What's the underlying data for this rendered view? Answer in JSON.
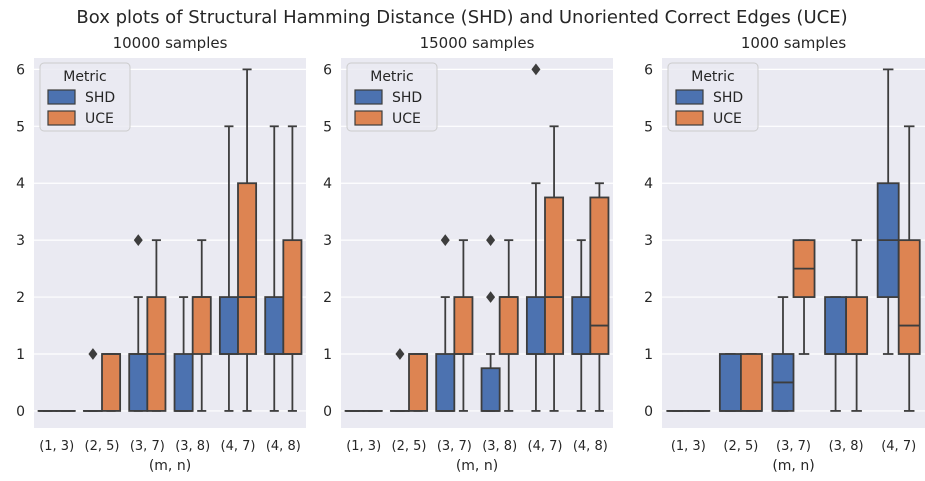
{
  "figure_title": "Box plots of Structural Hamming Distance (SHD) and Unoriented Correct Edges (UCE)",
  "colors": {
    "background": "#ffffff",
    "panel": "#eaeaf2",
    "grid": "#ffffff",
    "SHD": "#4c72b0",
    "UCE": "#dd8452",
    "line": "#3d3d3d",
    "text": "#262626"
  },
  "chart_data": [
    {
      "type": "box",
      "title": "10000 samples",
      "xlabel": "(m, n)",
      "ylabel": "",
      "ylim": [
        -0.3,
        6.2
      ],
      "yticks": [
        "0",
        "1",
        "2",
        "3",
        "4",
        "5",
        "6"
      ],
      "categories": [
        "(1, 3)",
        "(2, 5)",
        "(3, 7)",
        "(3, 8)",
        "(4, 7)",
        "(4, 8)"
      ],
      "legend": {
        "title": "Metric",
        "entries": [
          "SHD",
          "UCE"
        ],
        "position": "top-left"
      },
      "series": [
        {
          "name": "SHD",
          "boxes": [
            {
              "q1": 0,
              "median": 0,
              "q3": 0,
              "whislo": 0,
              "whishi": 0,
              "fliers": []
            },
            {
              "q1": 0,
              "median": 0,
              "q3": 0,
              "whislo": 0,
              "whishi": 0,
              "fliers": [
                1
              ]
            },
            {
              "q1": 0,
              "median": 1,
              "q3": 1,
              "whislo": 0,
              "whishi": 2,
              "fliers": [
                3
              ]
            },
            {
              "q1": 0,
              "median": 0,
              "q3": 1,
              "whislo": 0,
              "whishi": 2,
              "fliers": []
            },
            {
              "q1": 1,
              "median": 1,
              "q3": 2,
              "whislo": 0,
              "whishi": 5,
              "fliers": []
            },
            {
              "q1": 1,
              "median": 1,
              "q3": 2,
              "whislo": 0,
              "whishi": 5,
              "fliers": []
            }
          ]
        },
        {
          "name": "UCE",
          "boxes": [
            {
              "q1": 0,
              "median": 0,
              "q3": 0,
              "whislo": 0,
              "whishi": 0,
              "fliers": []
            },
            {
              "q1": 0,
              "median": 1,
              "q3": 1,
              "whislo": 0,
              "whishi": 1,
              "fliers": []
            },
            {
              "q1": 0,
              "median": 1,
              "q3": 2,
              "whislo": 0,
              "whishi": 3,
              "fliers": []
            },
            {
              "q1": 1,
              "median": 2,
              "q3": 2,
              "whislo": 0,
              "whishi": 3,
              "fliers": []
            },
            {
              "q1": 1,
              "median": 2,
              "q3": 4,
              "whislo": 0,
              "whishi": 6,
              "fliers": []
            },
            {
              "q1": 1,
              "median": 1,
              "q3": 3,
              "whislo": 0,
              "whishi": 5,
              "fliers": []
            }
          ]
        }
      ]
    },
    {
      "type": "box",
      "title": "15000 samples",
      "xlabel": "(m, n)",
      "ylabel": "",
      "ylim": [
        -0.3,
        6.2
      ],
      "yticks": [
        "0",
        "1",
        "2",
        "3",
        "4",
        "5",
        "6"
      ],
      "categories": [
        "(1, 3)",
        "(2, 5)",
        "(3, 7)",
        "(3, 8)",
        "(4, 7)",
        "(4, 8)"
      ],
      "legend": {
        "title": "Metric",
        "entries": [
          "SHD",
          "UCE"
        ],
        "position": "top-left"
      },
      "series": [
        {
          "name": "SHD",
          "boxes": [
            {
              "q1": 0,
              "median": 0,
              "q3": 0,
              "whislo": 0,
              "whishi": 0,
              "fliers": []
            },
            {
              "q1": 0,
              "median": 0,
              "q3": 0,
              "whislo": 0,
              "whishi": 0,
              "fliers": [
                1
              ]
            },
            {
              "q1": 0,
              "median": 0,
              "q3": 1,
              "whislo": 0,
              "whishi": 2,
              "fliers": [
                3
              ]
            },
            {
              "q1": 0,
              "median": 0,
              "q3": 0.75,
              "whislo": 0,
              "whishi": 1,
              "fliers": [
                2,
                3
              ]
            },
            {
              "q1": 1,
              "median": 1,
              "q3": 2,
              "whislo": 0,
              "whishi": 4,
              "fliers": [
                6
              ]
            },
            {
              "q1": 1,
              "median": 1,
              "q3": 2,
              "whislo": 0,
              "whishi": 3,
              "fliers": []
            }
          ]
        },
        {
          "name": "UCE",
          "boxes": [
            {
              "q1": 0,
              "median": 0,
              "q3": 0,
              "whislo": 0,
              "whishi": 0,
              "fliers": []
            },
            {
              "q1": 0,
              "median": 1,
              "q3": 1,
              "whislo": 0,
              "whishi": 1,
              "fliers": []
            },
            {
              "q1": 1,
              "median": 1,
              "q3": 2,
              "whislo": 0,
              "whishi": 3,
              "fliers": []
            },
            {
              "q1": 1,
              "median": 2,
              "q3": 2,
              "whislo": 0,
              "whishi": 3,
              "fliers": []
            },
            {
              "q1": 1,
              "median": 2,
              "q3": 3.75,
              "whislo": 0,
              "whishi": 5,
              "fliers": []
            },
            {
              "q1": 1,
              "median": 1.5,
              "q3": 3.75,
              "whislo": 0,
              "whishi": 4,
              "fliers": []
            }
          ]
        }
      ]
    },
    {
      "type": "box",
      "title": "1000 samples",
      "xlabel": "(m, n)",
      "ylabel": "",
      "ylim": [
        -0.3,
        6.2
      ],
      "yticks": [
        "0",
        "1",
        "2",
        "3",
        "4",
        "5",
        "6"
      ],
      "categories": [
        "(1, 3)",
        "(2, 5)",
        "(3, 7)",
        "(3, 8)",
        "(4, 7)"
      ],
      "legend": {
        "title": "Metric",
        "entries": [
          "SHD",
          "UCE"
        ],
        "position": "top-left"
      },
      "series": [
        {
          "name": "SHD",
          "boxes": [
            {
              "q1": 0,
              "median": 0,
              "q3": 0,
              "whislo": 0,
              "whishi": 0,
              "fliers": []
            },
            {
              "q1": 0,
              "median": 0,
              "q3": 1,
              "whislo": 0,
              "whishi": 1,
              "fliers": []
            },
            {
              "q1": 0,
              "median": 0.5,
              "q3": 1,
              "whislo": 0,
              "whishi": 2,
              "fliers": []
            },
            {
              "q1": 1,
              "median": 1,
              "q3": 2,
              "whislo": 0,
              "whishi": 2,
              "fliers": []
            },
            {
              "q1": 2,
              "median": 3,
              "q3": 4,
              "whislo": 1,
              "whishi": 6,
              "fliers": []
            }
          ]
        },
        {
          "name": "UCE",
          "boxes": [
            {
              "q1": 0,
              "median": 0,
              "q3": 0,
              "whislo": 0,
              "whishi": 0,
              "fliers": []
            },
            {
              "q1": 0,
              "median": 0,
              "q3": 1,
              "whislo": 0,
              "whishi": 1,
              "fliers": []
            },
            {
              "q1": 2,
              "median": 2.5,
              "q3": 3,
              "whislo": 1,
              "whishi": 3,
              "fliers": []
            },
            {
              "q1": 1,
              "median": 1,
              "q3": 2,
              "whislo": 0,
              "whishi": 3,
              "fliers": []
            },
            {
              "q1": 1,
              "median": 1.5,
              "q3": 3,
              "whislo": 0,
              "whishi": 5,
              "fliers": []
            }
          ]
        }
      ]
    }
  ]
}
